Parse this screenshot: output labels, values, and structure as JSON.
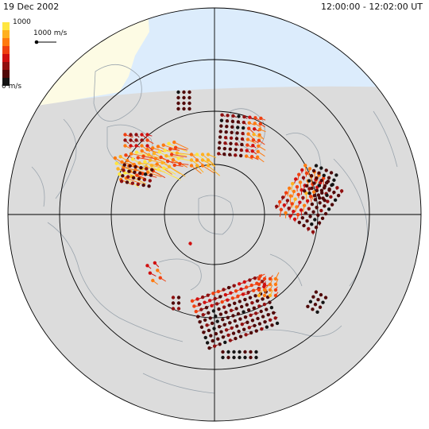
{
  "header": {
    "date": "19 Dec 2002",
    "time_range": "12:00:00 - 12:02:00 UT"
  },
  "legend": {
    "max_label": "1000",
    "min_label": "0 m/s",
    "reference_vector_label": "1000 m/s",
    "colors": [
      "#ffe640",
      "#ffb020",
      "#ff7a10",
      "#f04010",
      "#d01010",
      "#901010",
      "#500808",
      "#141414"
    ]
  },
  "map": {
    "projection": "polar",
    "ocean_color": "#dcecfc",
    "land_color": "#fdfbe4",
    "night_color": "#dcdcdc",
    "coast_color": "#9aa4ad",
    "grid_color": "#000000"
  },
  "vectors": [
    {
      "region": "northern-cluster",
      "speed": "low"
    },
    {
      "region": "northwest-cluster",
      "speed": "high"
    },
    {
      "region": "east-cluster",
      "speed": "medium"
    },
    {
      "region": "south-cluster",
      "speed": "low"
    }
  ]
}
